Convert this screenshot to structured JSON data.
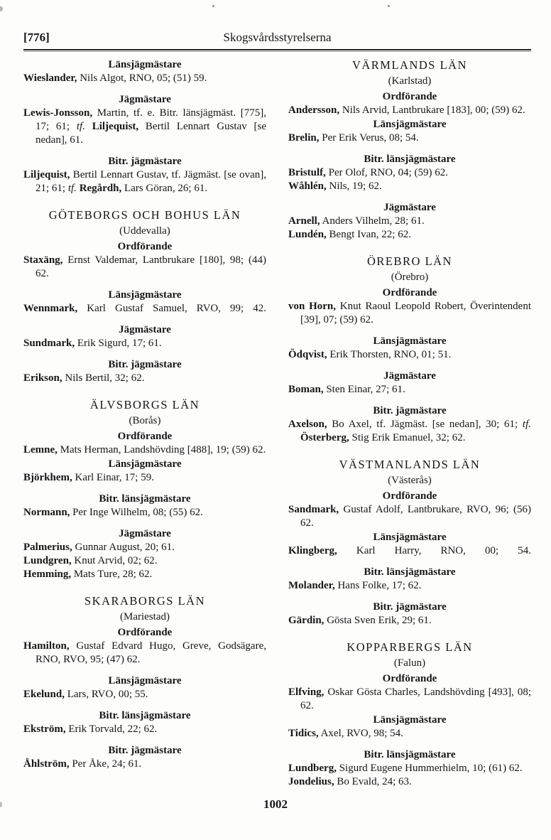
{
  "header": {
    "page_ref": "[776]",
    "title": "Skogsvårdsstyrelserna"
  },
  "footer": {
    "page_number": "1002"
  },
  "columns": {
    "left": [
      {
        "type": "role",
        "text": "Länsjägmästare"
      },
      {
        "type": "entry",
        "segments": [
          {
            "t": "Wieslander,",
            "s": "b"
          },
          {
            "t": " Nils Algot, RNO, 05; (51) 59.",
            "s": ""
          }
        ]
      },
      {
        "type": "role",
        "text": "Jägmästare"
      },
      {
        "type": "entry",
        "segments": [
          {
            "t": "Lewis-Jonsson,",
            "s": "b"
          },
          {
            "t": " Martin, tf. e. Bitr. länsjägmäst. [775], 17; 61; ",
            "s": ""
          },
          {
            "t": "tf.",
            "s": "i"
          },
          {
            "t": " ",
            "s": ""
          },
          {
            "t": "Liljequist,",
            "s": "b"
          },
          {
            "t": " Bertil Lennart Gustav [se nedan], 61.",
            "s": ""
          }
        ]
      },
      {
        "type": "role",
        "text": "Bitr. jägmästare"
      },
      {
        "type": "entry",
        "segments": [
          {
            "t": "Liljequist,",
            "s": "b"
          },
          {
            "t": " Bertil Lennart Gustav, tf. Jägmäst. [se ovan], 21; 61; ",
            "s": ""
          },
          {
            "t": "tf.",
            "s": "i"
          },
          {
            "t": " ",
            "s": ""
          },
          {
            "t": "Regårdh,",
            "s": "b"
          },
          {
            "t": " Lars Göran, 26; 61.",
            "s": ""
          }
        ]
      },
      {
        "type": "county",
        "text": "GÖTEBORGS OCH BOHUS LÄN"
      },
      {
        "type": "seat",
        "text": "(Uddevalla)"
      },
      {
        "type": "role",
        "text": "Ordförande"
      },
      {
        "type": "entry",
        "segments": [
          {
            "t": "Staxäng,",
            "s": "b"
          },
          {
            "t": " Ernst Valdemar, Lantbrukare [180], 98; (44) 62.",
            "s": ""
          }
        ]
      },
      {
        "type": "role",
        "text": "Länsjägmästare"
      },
      {
        "type": "entry",
        "spread": true,
        "segments": [
          {
            "t": "Wennmark,",
            "s": "b"
          },
          {
            "t": " Karl Gustaf Samuel, RVO, 99; 42.",
            "s": ""
          }
        ]
      },
      {
        "type": "role",
        "text": "Jägmästare"
      },
      {
        "type": "entry",
        "segments": [
          {
            "t": "Sundmark,",
            "s": "b"
          },
          {
            "t": " Erik Sigurd, 17; 61.",
            "s": ""
          }
        ]
      },
      {
        "type": "role",
        "text": "Bitr. jägmästare"
      },
      {
        "type": "entry",
        "segments": [
          {
            "t": "Erikson,",
            "s": "b"
          },
          {
            "t": " Nils Bertil, 32; 62.",
            "s": ""
          }
        ]
      },
      {
        "type": "county",
        "text": "ÄLVSBORGS LÄN"
      },
      {
        "type": "seat",
        "text": "(Borås)"
      },
      {
        "type": "role",
        "text": "Ordförande"
      },
      {
        "type": "entry",
        "segments": [
          {
            "t": "Lemne,",
            "s": "b"
          },
          {
            "t": " Mats Herman, Landshövding [488], 19; (59) 62.",
            "s": ""
          }
        ]
      },
      {
        "type": "role",
        "tight": true,
        "text": "Länsjägmästare"
      },
      {
        "type": "entry",
        "segments": [
          {
            "t": "Björkhem,",
            "s": "b"
          },
          {
            "t": " Karl Einar, 17; 59.",
            "s": ""
          }
        ]
      },
      {
        "type": "role",
        "text": "Bitr. länsjägmästare"
      },
      {
        "type": "entry",
        "segments": [
          {
            "t": "Normann,",
            "s": "b"
          },
          {
            "t": " Per Inge Wilhelm, 08; (55) 62.",
            "s": ""
          }
        ]
      },
      {
        "type": "role",
        "text": "Jägmästare"
      },
      {
        "type": "entry",
        "segments": [
          {
            "t": "Palmerius,",
            "s": "b"
          },
          {
            "t": " Gunnar August, 20; 61.",
            "s": ""
          }
        ]
      },
      {
        "type": "entry",
        "segments": [
          {
            "t": "Lundgren,",
            "s": "b"
          },
          {
            "t": " Knut Arvid, 02; 62.",
            "s": ""
          }
        ]
      },
      {
        "type": "entry",
        "segments": [
          {
            "t": "Hemming,",
            "s": "b"
          },
          {
            "t": " Mats Ture, 28; 62.",
            "s": ""
          }
        ]
      },
      {
        "type": "county",
        "text": "SKARABORGS LÄN"
      },
      {
        "type": "seat",
        "text": "(Mariestad)"
      },
      {
        "type": "role",
        "text": "Ordförande"
      },
      {
        "type": "entry",
        "segments": [
          {
            "t": "Hamilton,",
            "s": "b"
          },
          {
            "t": " Gustaf Edvard Hugo, Greve, Gods­ägare, RNO, RVO, 95; (47) 62.",
            "s": ""
          }
        ]
      },
      {
        "type": "role",
        "text": "Länsjägmästare"
      },
      {
        "type": "entry",
        "segments": [
          {
            "t": "Ekelund,",
            "s": "b"
          },
          {
            "t": " Lars, RVO, 00; 55.",
            "s": ""
          }
        ]
      },
      {
        "type": "role",
        "text": "Bitr. länsjägmästare"
      },
      {
        "type": "entry",
        "segments": [
          {
            "t": "Ekström,",
            "s": "b"
          },
          {
            "t": " Erik Torvald, 22; 62.",
            "s": ""
          }
        ]
      },
      {
        "type": "role",
        "text": "Bitr. jägmästare"
      },
      {
        "type": "entry",
        "segments": [
          {
            "t": "Åhlström,",
            "s": "b"
          },
          {
            "t": " Per Åke, 24; 61.",
            "s": ""
          }
        ]
      }
    ],
    "right": [
      {
        "type": "county",
        "text": "VÄRMLANDS LÄN"
      },
      {
        "type": "seat",
        "text": "(Karlstad)"
      },
      {
        "type": "role",
        "text": "Ordförande"
      },
      {
        "type": "entry",
        "segments": [
          {
            "t": "Andersson,",
            "s": "b"
          },
          {
            "t": " Nils Arvid, Lantbrukare [183], 00; (59) 62.",
            "s": ""
          }
        ]
      },
      {
        "type": "role",
        "tight": true,
        "text": "Länsjägmästare"
      },
      {
        "type": "entry",
        "segments": [
          {
            "t": "Brelin,",
            "s": "b"
          },
          {
            "t": " Per Erik Verus, 08; 54.",
            "s": ""
          }
        ]
      },
      {
        "type": "role",
        "text": "Bitr. länsjägmästare"
      },
      {
        "type": "entry",
        "segments": [
          {
            "t": "Bristulf,",
            "s": "b"
          },
          {
            "t": " Per Olof, RNO, 04; (59) 62.",
            "s": ""
          }
        ]
      },
      {
        "type": "entry",
        "segments": [
          {
            "t": "Wåhlén,",
            "s": "b"
          },
          {
            "t": " Nils, 19; 62.",
            "s": ""
          }
        ]
      },
      {
        "type": "role",
        "text": "Jägmästare"
      },
      {
        "type": "entry",
        "segments": [
          {
            "t": "Arnell,",
            "s": "b"
          },
          {
            "t": " Anders Vilhelm, 28; 61.",
            "s": ""
          }
        ]
      },
      {
        "type": "entry",
        "segments": [
          {
            "t": "Lundén,",
            "s": "b"
          },
          {
            "t": " Bengt Ivan, 22; 62.",
            "s": ""
          }
        ]
      },
      {
        "type": "county",
        "text": "ÖREBRO LÄN"
      },
      {
        "type": "seat",
        "text": "(Örebro)"
      },
      {
        "type": "role",
        "text": "Ordförande"
      },
      {
        "type": "entry",
        "segments": [
          {
            "t": "von Horn,",
            "s": "b"
          },
          {
            "t": " Knut Raoul Leopold Robert, Över­intendent [39], 07; (59) 62.",
            "s": ""
          }
        ]
      },
      {
        "type": "role",
        "text": "Länsjägmästare"
      },
      {
        "type": "entry",
        "segments": [
          {
            "t": "Ödqvist,",
            "s": "b"
          },
          {
            "t": " Erik Thorsten, RNO, 01; 51.",
            "s": ""
          }
        ]
      },
      {
        "type": "role",
        "text": "Jägmästare"
      },
      {
        "type": "entry",
        "segments": [
          {
            "t": "Boman,",
            "s": "b"
          },
          {
            "t": " Sten Einar, 27; 61.",
            "s": ""
          }
        ]
      },
      {
        "type": "role",
        "text": "Bitr. jägmästare"
      },
      {
        "type": "entry",
        "segments": [
          {
            "t": "Axelson,",
            "s": "b"
          },
          {
            "t": " Bo Axel, tf. Jägmäst. [se nedan], 30; 61; ",
            "s": ""
          },
          {
            "t": "tf.",
            "s": "i"
          },
          {
            "t": " ",
            "s": ""
          },
          {
            "t": "Österberg,",
            "s": "b"
          },
          {
            "t": " Stig Erik Emanuel, 32; 62.",
            "s": ""
          }
        ]
      },
      {
        "type": "county",
        "text": "VÄSTMANLANDS LÄN"
      },
      {
        "type": "seat",
        "text": "(Västerås)"
      },
      {
        "type": "role",
        "text": "Ordförande"
      },
      {
        "type": "entry",
        "segments": [
          {
            "t": "Sandmark,",
            "s": "b"
          },
          {
            "t": " Gustaf Adolf, Lantbrukare, RVO, 96; (56) 62.",
            "s": ""
          }
        ]
      },
      {
        "type": "role",
        "tight": true,
        "text": "Länsjägmästare"
      },
      {
        "type": "entry",
        "spread": true,
        "segments": [
          {
            "t": "Klingberg,",
            "s": "b"
          },
          {
            "t": " Karl Harry, RNO, 00; 54.",
            "s": ""
          }
        ]
      },
      {
        "type": "role",
        "text": "Bitr. länsjägmästare"
      },
      {
        "type": "entry",
        "segments": [
          {
            "t": "Molander,",
            "s": "b"
          },
          {
            "t": " Hans Folke, 17; 62.",
            "s": ""
          }
        ]
      },
      {
        "type": "role",
        "text": "Bitr. jägmästare"
      },
      {
        "type": "entry",
        "segments": [
          {
            "t": "Gärdin,",
            "s": "b"
          },
          {
            "t": " Gösta Sven Erik, 29; 61.",
            "s": ""
          }
        ]
      },
      {
        "type": "county",
        "text": "KOPPARBERGS LÄN"
      },
      {
        "type": "seat",
        "text": "(Falun)"
      },
      {
        "type": "role",
        "text": "Ordförande"
      },
      {
        "type": "entry",
        "segments": [
          {
            "t": "Elfving,",
            "s": "b"
          },
          {
            "t": " Oskar Gösta Charles, Landshövding [493], 08; 62.",
            "s": ""
          }
        ]
      },
      {
        "type": "role",
        "tight": true,
        "text": "Länsjägmästare"
      },
      {
        "type": "entry",
        "segments": [
          {
            "t": "Tidics,",
            "s": "b"
          },
          {
            "t": " Axel, RVO, 98; 54.",
            "s": ""
          }
        ]
      },
      {
        "type": "role",
        "text": "Bitr. länsjägmästare"
      },
      {
        "type": "entry",
        "segments": [
          {
            "t": "Lundberg,",
            "s": "b"
          },
          {
            "t": " Sigurd Eugene Hummerhielm, 10; (61) 62.",
            "s": ""
          }
        ]
      },
      {
        "type": "entry",
        "segments": [
          {
            "t": "Jondelius,",
            "s": "b"
          },
          {
            "t": " Bo Evald, 24; 63.",
            "s": ""
          }
        ]
      }
    ]
  }
}
